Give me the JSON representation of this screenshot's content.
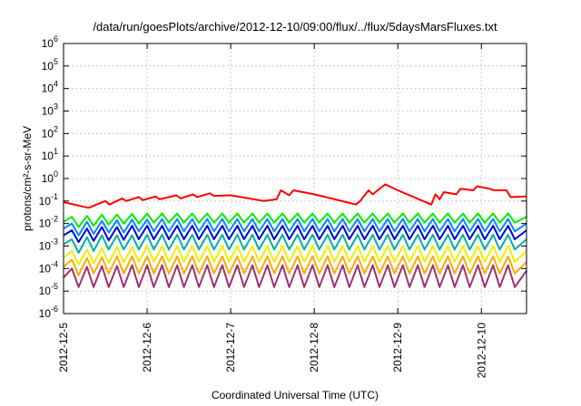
{
  "chart_data": {
    "type": "line",
    "title": "/data/run/goesPlots/archive/2012-12-10/09:00/flux/../flux/5daysMarsFluxes.txt",
    "xlabel": "Coordinated Universal Time (UTC)",
    "ylabel": "protons/cm²-s-sr-MeV",
    "xlim": [
      0,
      5.54
    ],
    "ylim": [
      1e-06,
      1000000.0
    ],
    "y_scale": "log",
    "grid": true,
    "x_ticks": [
      {
        "value": 0,
        "label": "2012-12-5"
      },
      {
        "value": 1,
        "label": "2012-12-6"
      },
      {
        "value": 2,
        "label": "2012-12-7"
      },
      {
        "value": 3,
        "label": "2012-12-8"
      },
      {
        "value": 4,
        "label": "2012-12-9"
      },
      {
        "value": 5,
        "label": "2012-12-10"
      }
    ],
    "y_ticks": [
      {
        "value": 1e-06,
        "base": "10",
        "exp": "-6"
      },
      {
        "value": 1e-05,
        "base": "10",
        "exp": "-5"
      },
      {
        "value": 0.0001,
        "base": "10",
        "exp": "-4"
      },
      {
        "value": 0.001,
        "base": "10",
        "exp": "-3"
      },
      {
        "value": 0.01,
        "base": "10",
        "exp": "-2"
      },
      {
        "value": 0.1,
        "base": "10",
        "exp": "-1"
      },
      {
        "value": 1.0,
        "base": "10",
        "exp": "0"
      },
      {
        "value": 10.0,
        "base": "10",
        "exp": "1"
      },
      {
        "value": 100.0,
        "base": "10",
        "exp": "2"
      },
      {
        "value": 1000.0,
        "base": "10",
        "exp": "3"
      },
      {
        "value": 10000.0,
        "base": "10",
        "exp": "4"
      },
      {
        "value": 100000.0,
        "base": "10",
        "exp": "5"
      },
      {
        "value": 1000000.0,
        "base": "10",
        "exp": "6"
      }
    ],
    "series": [
      {
        "color": "#ff0000",
        "x": [
          0,
          0.2,
          0.3,
          0.5,
          0.55,
          0.7,
          0.75,
          0.9,
          0.95,
          1.1,
          1.15,
          1.35,
          1.4,
          1.55,
          1.6,
          1.75,
          1.8,
          2.0,
          2.4,
          2.55,
          2.6,
          2.7,
          2.75,
          3.0,
          3.5,
          3.55,
          3.65,
          3.7,
          3.85,
          3.9,
          4.0,
          4.4,
          4.45,
          4.5,
          4.55,
          4.7,
          4.75,
          4.9,
          4.95,
          5.1,
          5.15,
          5.3,
          5.35,
          5.54
        ],
        "values": [
          0.09,
          0.06,
          0.05,
          0.1,
          0.07,
          0.13,
          0.1,
          0.15,
          0.11,
          0.16,
          0.12,
          0.18,
          0.13,
          0.2,
          0.15,
          0.22,
          0.17,
          0.18,
          0.1,
          0.12,
          0.3,
          0.18,
          0.3,
          0.2,
          0.07,
          0.1,
          0.3,
          0.2,
          0.55,
          0.45,
          0.3,
          0.07,
          0.2,
          0.12,
          0.25,
          0.2,
          0.35,
          0.3,
          0.45,
          0.35,
          0.3,
          0.3,
          0.15,
          0.16
        ]
      },
      {
        "color": "#00ee00",
        "x": [
          0,
          0.1,
          0.18,
          0.28,
          0.36,
          0.46,
          0.54,
          0.64,
          0.72,
          0.82,
          0.9,
          1.0,
          1.08,
          1.18,
          1.26,
          1.36,
          1.44,
          1.54,
          1.62,
          1.72,
          1.8,
          1.9,
          1.98,
          2.08,
          2.16,
          2.26,
          2.34,
          2.44,
          2.52,
          2.62,
          2.7,
          2.8,
          2.88,
          2.98,
          3.06,
          3.16,
          3.24,
          3.34,
          3.42,
          3.52,
          3.6,
          3.7,
          3.78,
          3.88,
          3.96,
          4.06,
          4.14,
          4.24,
          4.32,
          4.42,
          4.5,
          4.6,
          4.68,
          4.78,
          4.86,
          4.96,
          5.04,
          5.14,
          5.22,
          5.32,
          5.4,
          5.54
        ],
        "values": [
          0.012,
          0.02,
          0.007,
          0.022,
          0.008,
          0.025,
          0.009,
          0.025,
          0.01,
          0.027,
          0.01,
          0.028,
          0.011,
          0.028,
          0.011,
          0.028,
          0.011,
          0.028,
          0.011,
          0.028,
          0.011,
          0.028,
          0.011,
          0.028,
          0.011,
          0.028,
          0.011,
          0.028,
          0.011,
          0.028,
          0.011,
          0.028,
          0.011,
          0.028,
          0.011,
          0.028,
          0.011,
          0.028,
          0.011,
          0.028,
          0.011,
          0.028,
          0.011,
          0.028,
          0.011,
          0.028,
          0.011,
          0.028,
          0.011,
          0.028,
          0.011,
          0.028,
          0.011,
          0.028,
          0.011,
          0.028,
          0.011,
          0.028,
          0.011,
          0.028,
          0.011,
          0.02
        ]
      },
      {
        "color": "#0088ff",
        "x": [
          0,
          0.1,
          0.18,
          0.28,
          0.36,
          0.46,
          0.54,
          0.64,
          0.72,
          0.82,
          0.9,
          1.0,
          1.08,
          1.18,
          1.26,
          1.36,
          1.44,
          1.54,
          1.62,
          1.72,
          1.8,
          1.9,
          1.98,
          2.08,
          2.16,
          2.26,
          2.34,
          2.44,
          2.52,
          2.62,
          2.7,
          2.8,
          2.88,
          2.98,
          3.06,
          3.16,
          3.24,
          3.34,
          3.42,
          3.52,
          3.6,
          3.7,
          3.78,
          3.88,
          3.96,
          4.06,
          4.14,
          4.24,
          4.32,
          4.42,
          4.5,
          4.6,
          4.68,
          4.78,
          4.86,
          4.96,
          5.04,
          5.14,
          5.22,
          5.32,
          5.4,
          5.54
        ],
        "values": [
          0.006,
          0.01,
          0.003,
          0.012,
          0.0035,
          0.013,
          0.004,
          0.014,
          0.004,
          0.015,
          0.0045,
          0.015,
          0.0045,
          0.016,
          0.0045,
          0.016,
          0.0045,
          0.016,
          0.0045,
          0.016,
          0.0045,
          0.016,
          0.0045,
          0.016,
          0.0045,
          0.016,
          0.0045,
          0.016,
          0.0045,
          0.016,
          0.0045,
          0.016,
          0.0045,
          0.016,
          0.0045,
          0.016,
          0.0045,
          0.016,
          0.0045,
          0.016,
          0.0045,
          0.016,
          0.0045,
          0.016,
          0.0045,
          0.016,
          0.0045,
          0.016,
          0.0045,
          0.016,
          0.0045,
          0.016,
          0.0045,
          0.016,
          0.0045,
          0.016,
          0.0045,
          0.016,
          0.0045,
          0.016,
          0.0045,
          0.01
        ]
      },
      {
        "color": "#0000dd",
        "x": [
          0,
          0.1,
          0.18,
          0.28,
          0.36,
          0.46,
          0.54,
          0.64,
          0.72,
          0.82,
          0.9,
          1.0,
          1.08,
          1.18,
          1.26,
          1.36,
          1.44,
          1.54,
          1.62,
          1.72,
          1.8,
          1.9,
          1.98,
          2.08,
          2.16,
          2.26,
          2.34,
          2.44,
          2.52,
          2.62,
          2.7,
          2.8,
          2.88,
          2.98,
          3.06,
          3.16,
          3.24,
          3.34,
          3.42,
          3.52,
          3.6,
          3.7,
          3.78,
          3.88,
          3.96,
          4.06,
          4.14,
          4.24,
          4.32,
          4.42,
          4.5,
          4.6,
          4.68,
          4.78,
          4.86,
          4.96,
          5.04,
          5.14,
          5.22,
          5.32,
          5.4,
          5.54
        ],
        "values": [
          0.003,
          0.005,
          0.0015,
          0.006,
          0.0017,
          0.007,
          0.0018,
          0.007,
          0.0019,
          0.008,
          0.002,
          0.008,
          0.002,
          0.008,
          0.002,
          0.008,
          0.002,
          0.008,
          0.002,
          0.008,
          0.002,
          0.008,
          0.002,
          0.008,
          0.002,
          0.008,
          0.002,
          0.008,
          0.002,
          0.008,
          0.002,
          0.008,
          0.002,
          0.008,
          0.002,
          0.008,
          0.002,
          0.008,
          0.002,
          0.008,
          0.002,
          0.008,
          0.002,
          0.008,
          0.002,
          0.008,
          0.002,
          0.008,
          0.002,
          0.008,
          0.002,
          0.008,
          0.002,
          0.008,
          0.002,
          0.008,
          0.002,
          0.008,
          0.002,
          0.008,
          0.002,
          0.005
        ]
      },
      {
        "color": "#00b0a0",
        "x": [
          0,
          0.1,
          0.18,
          0.28,
          0.36,
          0.46,
          0.54,
          0.64,
          0.72,
          0.82,
          0.9,
          1.0,
          1.08,
          1.18,
          1.26,
          1.36,
          1.44,
          1.54,
          1.62,
          1.72,
          1.8,
          1.9,
          1.98,
          2.08,
          2.16,
          2.26,
          2.34,
          2.44,
          2.52,
          2.62,
          2.7,
          2.8,
          2.88,
          2.98,
          3.06,
          3.16,
          3.24,
          3.34,
          3.42,
          3.52,
          3.6,
          3.7,
          3.78,
          3.88,
          3.96,
          4.06,
          4.14,
          4.24,
          4.32,
          4.42,
          4.5,
          4.6,
          4.68,
          4.78,
          4.86,
          4.96,
          5.04,
          5.14,
          5.22,
          5.32,
          5.4,
          5.54
        ],
        "values": [
          0.0012,
          0.002,
          0.0005,
          0.0025,
          0.0006,
          0.003,
          0.0007,
          0.003,
          0.0007,
          0.003,
          0.0007,
          0.0032,
          0.0007,
          0.0032,
          0.0007,
          0.0032,
          0.0007,
          0.0032,
          0.0007,
          0.0032,
          0.0007,
          0.0032,
          0.0007,
          0.0032,
          0.0007,
          0.0032,
          0.0007,
          0.0032,
          0.0007,
          0.0032,
          0.0007,
          0.0032,
          0.0007,
          0.0032,
          0.0007,
          0.0032,
          0.0007,
          0.0032,
          0.0007,
          0.0032,
          0.0007,
          0.0032,
          0.0007,
          0.0032,
          0.0007,
          0.0032,
          0.0007,
          0.0032,
          0.0007,
          0.0032,
          0.0007,
          0.0032,
          0.0007,
          0.0032,
          0.0007,
          0.0032,
          0.0007,
          0.0032,
          0.0007,
          0.0032,
          0.0007,
          0.002
        ]
      },
      {
        "color": "#eeee00",
        "x": [
          0,
          0.1,
          0.18,
          0.28,
          0.36,
          0.46,
          0.54,
          0.64,
          0.72,
          0.82,
          0.9,
          1.0,
          1.08,
          1.18,
          1.26,
          1.36,
          1.44,
          1.54,
          1.62,
          1.72,
          1.8,
          1.9,
          1.98,
          2.08,
          2.16,
          2.26,
          2.34,
          2.44,
          2.52,
          2.62,
          2.7,
          2.8,
          2.88,
          2.98,
          3.06,
          3.16,
          3.24,
          3.34,
          3.42,
          3.52,
          3.6,
          3.7,
          3.78,
          3.88,
          3.96,
          4.06,
          4.14,
          4.24,
          4.32,
          4.42,
          4.5,
          4.6,
          4.68,
          4.78,
          4.86,
          4.96,
          5.04,
          5.14,
          5.22,
          5.32,
          5.4,
          5.54
        ],
        "values": [
          0.0003,
          0.0006,
          0.00015,
          0.0007,
          0.00017,
          0.0008,
          0.00018,
          0.0009,
          0.00019,
          0.0009,
          0.0002,
          0.001,
          0.0002,
          0.001,
          0.0002,
          0.001,
          0.0002,
          0.001,
          0.0002,
          0.001,
          0.0002,
          0.001,
          0.0002,
          0.001,
          0.0002,
          0.001,
          0.0002,
          0.001,
          0.0002,
          0.001,
          0.0002,
          0.001,
          0.0002,
          0.001,
          0.0002,
          0.001,
          0.0002,
          0.001,
          0.0002,
          0.001,
          0.0002,
          0.001,
          0.0002,
          0.001,
          0.0002,
          0.001,
          0.0002,
          0.001,
          0.0002,
          0.001,
          0.0002,
          0.001,
          0.0002,
          0.001,
          0.0002,
          0.001,
          0.0002,
          0.001,
          0.0002,
          0.001,
          0.0002,
          0.0006
        ]
      },
      {
        "color": "#ffaa00",
        "x": [
          0,
          0.1,
          0.18,
          0.28,
          0.36,
          0.46,
          0.54,
          0.64,
          0.72,
          0.82,
          0.9,
          1.0,
          1.08,
          1.18,
          1.26,
          1.36,
          1.44,
          1.54,
          1.62,
          1.72,
          1.8,
          1.9,
          1.98,
          2.08,
          2.16,
          2.26,
          2.34,
          2.44,
          2.52,
          2.62,
          2.7,
          2.8,
          2.88,
          2.98,
          3.06,
          3.16,
          3.24,
          3.34,
          3.42,
          3.52,
          3.6,
          3.7,
          3.78,
          3.88,
          3.96,
          4.06,
          4.14,
          4.24,
          4.32,
          4.42,
          4.5,
          4.6,
          4.68,
          4.78,
          4.86,
          4.96,
          5.04,
          5.14,
          5.22,
          5.32,
          5.4,
          5.54
        ],
        "values": [
          0.00012,
          0.00025,
          5e-05,
          0.0003,
          6e-05,
          0.00032,
          6e-05,
          0.00035,
          6e-05,
          0.00035,
          6e-05,
          0.00035,
          6e-05,
          0.00035,
          6e-05,
          0.00035,
          6e-05,
          0.00035,
          6e-05,
          0.00035,
          6e-05,
          0.00035,
          6e-05,
          0.00035,
          6e-05,
          0.00035,
          6e-05,
          0.00035,
          6e-05,
          0.00035,
          6e-05,
          0.00035,
          6e-05,
          0.00035,
          6e-05,
          0.00035,
          6e-05,
          0.00035,
          6e-05,
          0.00035,
          6e-05,
          0.00035,
          6e-05,
          0.00035,
          6e-05,
          0.00035,
          6e-05,
          0.00035,
          6e-05,
          0.00035,
          6e-05,
          0.00035,
          6e-05,
          0.00035,
          6e-05,
          0.00035,
          6e-05,
          0.00035,
          6e-05,
          0.00035,
          6e-05,
          0.0002
        ]
      },
      {
        "color": "#a03070",
        "x": [
          0,
          0.1,
          0.18,
          0.28,
          0.36,
          0.46,
          0.54,
          0.64,
          0.72,
          0.82,
          0.9,
          1.0,
          1.08,
          1.18,
          1.26,
          1.36,
          1.44,
          1.54,
          1.62,
          1.72,
          1.8,
          1.9,
          1.98,
          2.08,
          2.16,
          2.26,
          2.34,
          2.44,
          2.52,
          2.62,
          2.7,
          2.8,
          2.88,
          2.98,
          3.06,
          3.16,
          3.24,
          3.34,
          3.42,
          3.52,
          3.6,
          3.7,
          3.78,
          3.88,
          3.96,
          4.06,
          4.14,
          4.24,
          4.32,
          4.42,
          4.5,
          4.6,
          4.68,
          4.78,
          4.86,
          4.96,
          5.04,
          5.14,
          5.22,
          5.32,
          5.4,
          5.54
        ],
        "values": [
          4e-05,
          0.0001,
          1.5e-05,
          0.00012,
          1.5e-05,
          0.00013,
          1.5e-05,
          0.00013,
          1.5e-05,
          0.00014,
          1.5e-05,
          0.00014,
          1.5e-05,
          0.00014,
          1.5e-05,
          0.00014,
          1.5e-05,
          0.00014,
          1.5e-05,
          0.00014,
          1.5e-05,
          0.00014,
          1.5e-05,
          0.00014,
          1.5e-05,
          0.00014,
          1.5e-05,
          0.00014,
          1.5e-05,
          0.00014,
          1.5e-05,
          0.00014,
          1.5e-05,
          0.00014,
          1.5e-05,
          0.00014,
          1.5e-05,
          0.00014,
          1.5e-05,
          0.00014,
          1.5e-05,
          0.00014,
          1.5e-05,
          0.00014,
          1.5e-05,
          0.00014,
          1.5e-05,
          0.00014,
          1.5e-05,
          0.00014,
          1.5e-05,
          0.00014,
          1.5e-05,
          0.00014,
          1.5e-05,
          0.00014,
          1.5e-05,
          0.00014,
          1.5e-05,
          0.00014,
          1.5e-05,
          8e-05
        ]
      }
    ]
  }
}
